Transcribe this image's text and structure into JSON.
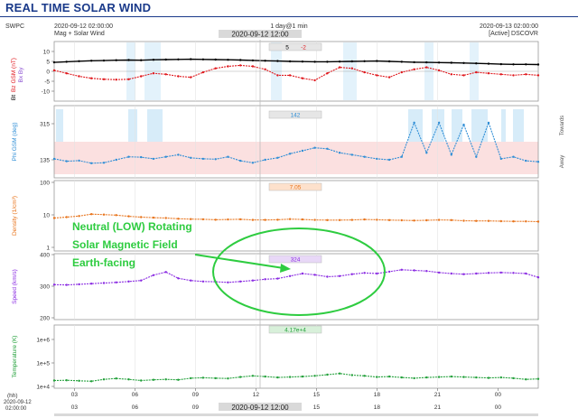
{
  "page_title": "REAL TIME SOLAR WIND",
  "header": {
    "org": "SWPC",
    "start_time": "2020-09-12 02:00:00",
    "end_time": "2020-09-13 02:00:00",
    "subtitle_left": "Mag + Solar Wind",
    "span": "1 day@1 min",
    "source": "[Active] DSCOVR",
    "cursor_time": "2020-09-12 12:00",
    "hour_label": "(hh)"
  },
  "colors": {
    "bt": "#000000",
    "bz": "#e0171c",
    "phi": "#2f8ed6",
    "density": "#e8741c",
    "speed": "#8a2be2",
    "temperature": "#22a03a",
    "annotation": "#2ecc40",
    "phi_band_pink": "#fbe0e0",
    "phi_band_blue": "#d7ecf9"
  },
  "annotation": {
    "lines": [
      "Neutral (LOW) Rotating",
      "Solar Magnetic Field",
      "Earth-facing"
    ]
  },
  "chart_data": {
    "type": "line",
    "x_axis": {
      "ticks": [
        "03",
        "06",
        "09",
        "12",
        "15",
        "18",
        "21",
        "00"
      ],
      "bottom_left_date": "2020-09-12",
      "bottom_left_time": "02:00:00",
      "bottom_cursor_time": "2020-09-12 12:00"
    },
    "panels": [
      {
        "id": "mag",
        "ylabel_parts": [
          "Bt",
          "Bz GSM (nT)",
          "Bx  By"
        ],
        "yticks": [
          "10",
          "5",
          "0",
          "-5",
          "-10"
        ],
        "ylim": [
          -10,
          10
        ],
        "cursor_values": [
          "5",
          "-2"
        ],
        "series": [
          {
            "key": "bt",
            "values": [
              4.5,
              4.8,
              5.1,
              5.3,
              5.4,
              5.6,
              5.7,
              5.6,
              5.8,
              5.9,
              6.0,
              6.1,
              6.0,
              5.9,
              5.8,
              5.7,
              5.5,
              5.3,
              5.2,
              5.0,
              4.9,
              4.8,
              4.8,
              4.9,
              5.0,
              5.1,
              5.2,
              5.0,
              4.8,
              4.6,
              4.5,
              4.4,
              4.3,
              4.2,
              4.0,
              3.8,
              3.6,
              3.5,
              3.5,
              3.4
            ]
          },
          {
            "key": "bz",
            "values": [
              0.5,
              -1.0,
              -2.5,
              -3.5,
              -4.0,
              -4.2,
              -4.0,
              -2.5,
              -1.0,
              -1.5,
              -2.5,
              -3.0,
              -0.5,
              1.5,
              2.5,
              3.0,
              2.5,
              1.0,
              -2.0,
              -2.0,
              -3.5,
              -4.5,
              -1.0,
              2.0,
              1.5,
              -0.5,
              -2.0,
              -3.0,
              -0.5,
              1.0,
              2.0,
              0.5,
              -1.5,
              -2.0,
              -0.5,
              -1.0,
              -1.5,
              -2.0,
              -1.5,
              -2.0
            ]
          }
        ]
      },
      {
        "id": "phi",
        "ylabel": "Phi GSM (deg)",
        "yticks": [
          "315",
          "135"
        ],
        "ylim": [
          45,
          360
        ],
        "right_labels": [
          "Towards",
          "Away"
        ],
        "cursor_values": [
          "142"
        ],
        "series": [
          {
            "key": "phi",
            "values": [
              140,
              128,
              131,
              118,
              120,
              135,
              150,
              148,
              140,
              150,
              160,
              145,
              140,
              138,
              150,
              130,
              120,
              135,
              145,
              165,
              180,
              195,
              190,
              170,
              160,
              150,
              140,
              135,
              150,
              320,
              170,
              320,
              160,
              310,
              150,
              320,
              140,
              150,
              130,
              125
            ]
          }
        ]
      },
      {
        "id": "density",
        "ylabel": "Density (1/cm³)",
        "yticks": [
          "100",
          "10",
          "1"
        ],
        "ylim_log": [
          0,
          2
        ],
        "cursor_values": [
          "7.05"
        ],
        "series": [
          {
            "key": "density",
            "values": [
              8.0,
              8.5,
              9.2,
              10.5,
              10.2,
              9.8,
              9.0,
              8.5,
              8.2,
              8.0,
              7.6,
              7.4,
              7.3,
              7.1,
              7.2,
              7.3,
              7.0,
              7.0,
              7.1,
              7.4,
              7.2,
              7.0,
              6.9,
              6.9,
              7.0,
              7.2,
              7.1,
              6.9,
              6.8,
              6.7,
              6.8,
              7.0,
              6.9,
              6.6,
              6.5,
              6.5,
              6.4,
              6.3,
              6.3,
              6.2
            ]
          }
        ]
      },
      {
        "id": "speed",
        "ylabel": "Speed (km/s)",
        "yticks": [
          "400",
          "300",
          "200"
        ],
        "ylim": [
          200,
          400
        ],
        "cursor_values": [
          "324"
        ],
        "series": [
          {
            "key": "speed",
            "values": [
              305,
              304,
              306,
              308,
              310,
              312,
              315,
              318,
              335,
              345,
              325,
              318,
              315,
              314,
              312,
              315,
              318,
              322,
              324,
              332,
              340,
              336,
              330,
              332,
              338,
              342,
              340,
              346,
              352,
              350,
              348,
              343,
              340,
              338,
              340,
              342,
              343,
              342,
              340,
              328
            ]
          }
        ]
      },
      {
        "id": "temperature",
        "ylabel": "Temperature (K)",
        "yticks": [
          "1e+6",
          "1e+5",
          "1e+4"
        ],
        "ylim_log": [
          4,
          6
        ],
        "cursor_values": [
          "4.17e+4"
        ],
        "series": [
          {
            "key": "temperature",
            "values": [
              4.25,
              4.26,
              4.24,
              4.22,
              4.3,
              4.34,
              4.3,
              4.25,
              4.28,
              4.3,
              4.28,
              4.35,
              4.37,
              4.35,
              4.34,
              4.4,
              4.45,
              4.42,
              4.38,
              4.4,
              4.42,
              4.45,
              4.5,
              4.55,
              4.48,
              4.45,
              4.4,
              4.42,
              4.38,
              4.35,
              4.38,
              4.4,
              4.42,
              4.4,
              4.38,
              4.36,
              4.38,
              4.35,
              4.3,
              4.32
            ]
          }
        ]
      }
    ]
  }
}
